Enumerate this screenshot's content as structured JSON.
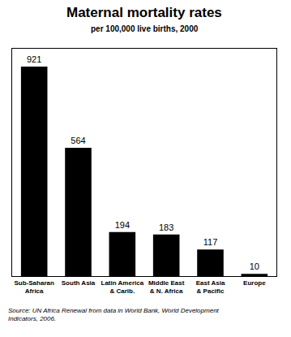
{
  "chart_data": {
    "type": "bar",
    "title": "Maternal mortality rates",
    "subtitle": "per 100,000 live births, 2000",
    "categories": [
      "Sub-Saharan\nAfrica",
      "South Asia",
      "Latin America\n& Carib.",
      "Middle East\n& N. Africa",
      "East Asia\n& Pacific",
      "Europe"
    ],
    "values": [
      921,
      564,
      194,
      183,
      117,
      10
    ],
    "color": "#000000",
    "ylim": [
      0,
      1000
    ],
    "grid": false,
    "data_labels": true,
    "tick_labels": "x",
    "source": "Source: UN Africa Renewal from data in World Bank, World Development\nIndicators, 2006."
  }
}
